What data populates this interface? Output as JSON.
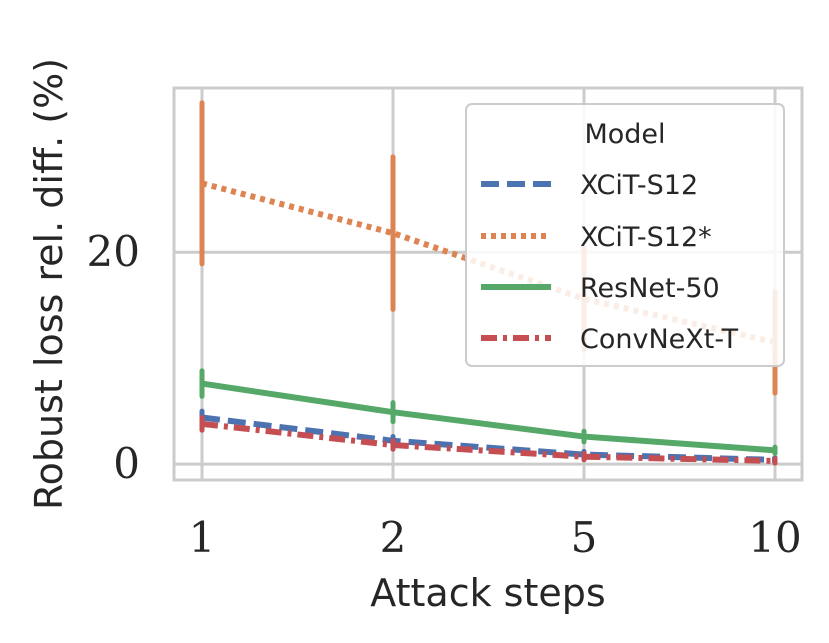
{
  "chart_data": {
    "type": "line",
    "xlabel": "Attack steps",
    "ylabel": "Robust loss rel. diff. (%)",
    "categories": [
      "1",
      "2",
      "5",
      "10"
    ],
    "yticks": [
      "0",
      "20"
    ],
    "ytick_values": [
      0,
      20
    ],
    "ylim": [
      -1.5,
      35.5
    ],
    "grid": true,
    "legend": {
      "title": "Model",
      "placement": "top-right"
    },
    "series": [
      {
        "name": "XCiT-S12",
        "style": "dashed",
        "color": "#4c72b0",
        "values": [
          4.4,
          2.2,
          0.9,
          0.4
        ],
        "error": [
          0.6,
          0.4,
          0.3,
          0.2
        ]
      },
      {
        "name": "XCiT-S12*",
        "style": "dotted",
        "color": "#dd8452",
        "values": [
          26.5,
          21.8,
          15.6,
          11.5
        ],
        "error": [
          7.6,
          7.2,
          4.8,
          4.8
        ]
      },
      {
        "name": "ResNet-50",
        "style": "solid",
        "color": "#55a868",
        "values": [
          7.6,
          4.9,
          2.6,
          1.3
        ],
        "error": [
          1.2,
          0.9,
          0.5,
          0.3
        ]
      },
      {
        "name": "ConvNeXt-T",
        "style": "dashdot",
        "color": "#c44e52",
        "values": [
          3.8,
          1.8,
          0.7,
          0.3
        ],
        "error": [
          0.6,
          0.4,
          0.3,
          0.2
        ]
      }
    ]
  }
}
